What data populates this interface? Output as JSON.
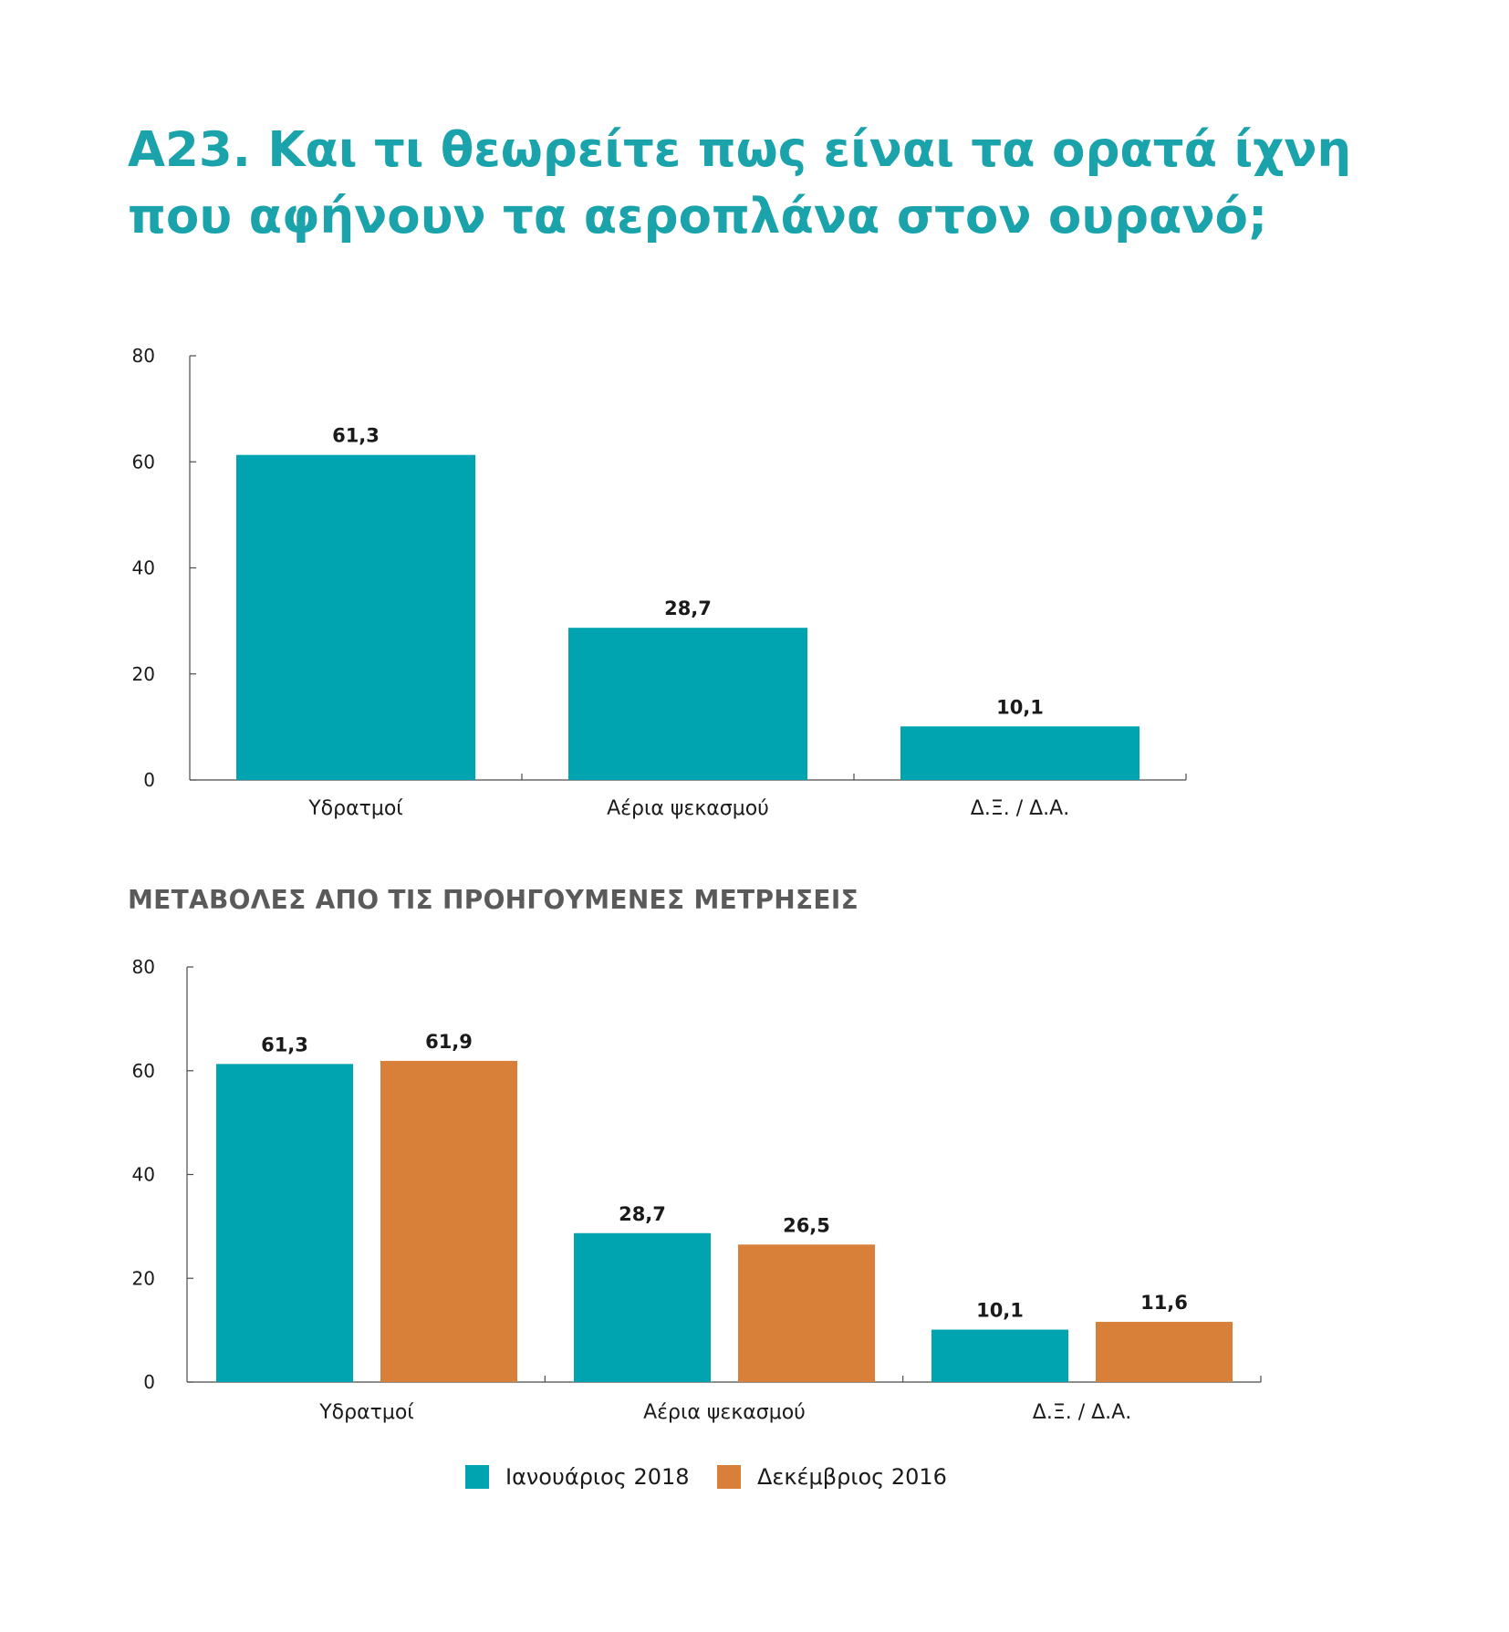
{
  "title_line1": "Α23. Και τι θεωρείτε πως είναι τα ορατά ίχνη",
  "title_line2": "που αφήνουν τα αεροπλάνα στον ουρανό;",
  "section_title": "ΜΕΤΑΒΟΛΕΣ ΑΠΟ ΤΙΣ ΠΡΟΗΓΟΥΜΕΝΕΣ ΜΕΤΡΗΣΕΙΣ",
  "colors": {
    "teal": "#00a3b0",
    "orange": "#d8803a"
  },
  "chart_data": [
    {
      "type": "bar",
      "title": "",
      "xlabel": "",
      "ylabel": "",
      "categories": [
        "Υδρατμοί",
        "Αέρια ψεκασμού",
        "Δ.Ξ. / Δ.Α."
      ],
      "series": [
        {
          "values": [
            61.3,
            28.7,
            10.1
          ],
          "labels": [
            "61,3",
            "28,7",
            "10,1"
          ],
          "color": "#00a3b0"
        }
      ],
      "ylim": [
        0,
        80
      ],
      "yticks": [
        0,
        20,
        40,
        60,
        80
      ],
      "grid": false
    },
    {
      "type": "bar",
      "title": "",
      "xlabel": "",
      "ylabel": "",
      "categories": [
        "Υδρατμοί",
        "Αέρια ψεκασμού",
        "Δ.Ξ. / Δ.Α."
      ],
      "series": [
        {
          "name": "Ιανουάριος 2018",
          "values": [
            61.3,
            28.7,
            10.1
          ],
          "labels": [
            "61,3",
            "28,7",
            "10,1"
          ],
          "color": "#00a3b0"
        },
        {
          "name": "Δεκέμβριος 2016",
          "values": [
            61.9,
            26.5,
            11.6
          ],
          "labels": [
            "61,9",
            "26,5",
            "11,6"
          ],
          "color": "#d8803a"
        }
      ],
      "ylim": [
        0,
        80
      ],
      "yticks": [
        0,
        20,
        40,
        60,
        80
      ],
      "grid": false,
      "legend": "bottom-center"
    }
  ]
}
